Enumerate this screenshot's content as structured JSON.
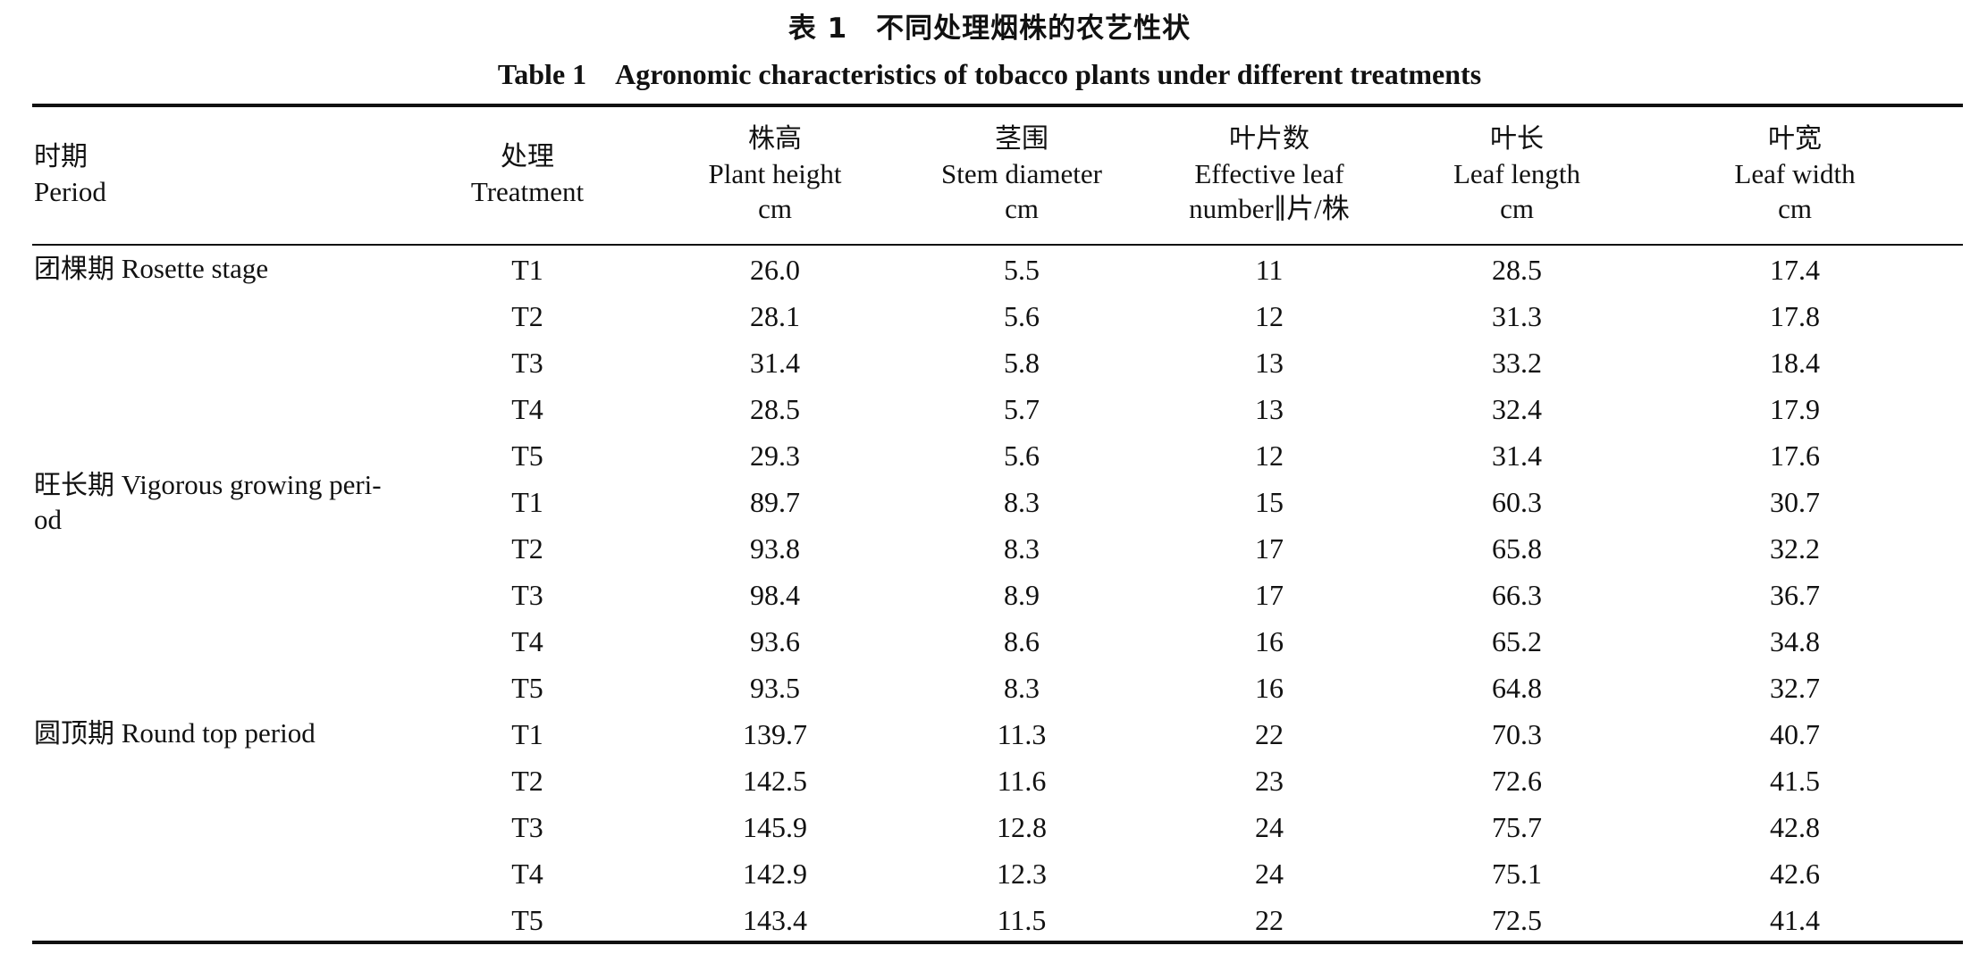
{
  "caption": {
    "cn": "表 1　不同处理烟株的农艺性状",
    "en": "Table 1　Agronomic characteristics of tobacco plants under different treatments"
  },
  "headers": {
    "period": {
      "cn": "时期",
      "en": "Period"
    },
    "treatment": {
      "cn": "处理",
      "en": "Treatment"
    },
    "plant_height": {
      "cn": "株高",
      "en": "Plant height",
      "unit": "cm"
    },
    "stem_diameter": {
      "cn": "茎围",
      "en": "Stem diameter",
      "unit": "cm"
    },
    "leaf_number": {
      "cn": "叶片数",
      "en": "Effective leaf",
      "unit": "number∥片/株"
    },
    "leaf_length": {
      "cn": "叶长",
      "en": "Leaf length",
      "unit": "cm"
    },
    "leaf_width": {
      "cn": "叶宽",
      "en": "Leaf width",
      "unit": "cm"
    }
  },
  "periods": [
    {
      "cn": "团棵期",
      "en": "Rosette stage",
      "en2": ""
    },
    {
      "cn": "旺长期",
      "en": "Vigorous growing peri-",
      "en2": "od"
    },
    {
      "cn": "圆顶期",
      "en": "Round top period",
      "en2": ""
    }
  ],
  "rows": [
    [
      "T1",
      "26.0",
      "5.5",
      "11",
      "28.5",
      "17.4"
    ],
    [
      "T2",
      "28.1",
      "5.6",
      "12",
      "31.3",
      "17.8"
    ],
    [
      "T3",
      "31.4",
      "5.8",
      "13",
      "33.2",
      "18.4"
    ],
    [
      "T4",
      "28.5",
      "5.7",
      "13",
      "32.4",
      "17.9"
    ],
    [
      "T5",
      "29.3",
      "5.6",
      "12",
      "31.4",
      "17.6"
    ],
    [
      "T1",
      "89.7",
      "8.3",
      "15",
      "60.3",
      "30.7"
    ],
    [
      "T2",
      "93.8",
      "8.3",
      "17",
      "65.8",
      "32.2"
    ],
    [
      "T3",
      "98.4",
      "8.9",
      "17",
      "66.3",
      "36.7"
    ],
    [
      "T4",
      "93.6",
      "8.6",
      "16",
      "65.2",
      "34.8"
    ],
    [
      "T5",
      "93.5",
      "8.3",
      "16",
      "64.8",
      "32.7"
    ],
    [
      "T1",
      "139.7",
      "11.3",
      "22",
      "70.3",
      "40.7"
    ],
    [
      "T2",
      "142.5",
      "11.6",
      "23",
      "72.6",
      "41.5"
    ],
    [
      "T3",
      "145.9",
      "12.8",
      "24",
      "75.7",
      "42.8"
    ],
    [
      "T4",
      "142.9",
      "12.3",
      "24",
      "75.1",
      "42.6"
    ],
    [
      "T5",
      "143.4",
      "11.5",
      "22",
      "72.5",
      "41.4"
    ]
  ]
}
